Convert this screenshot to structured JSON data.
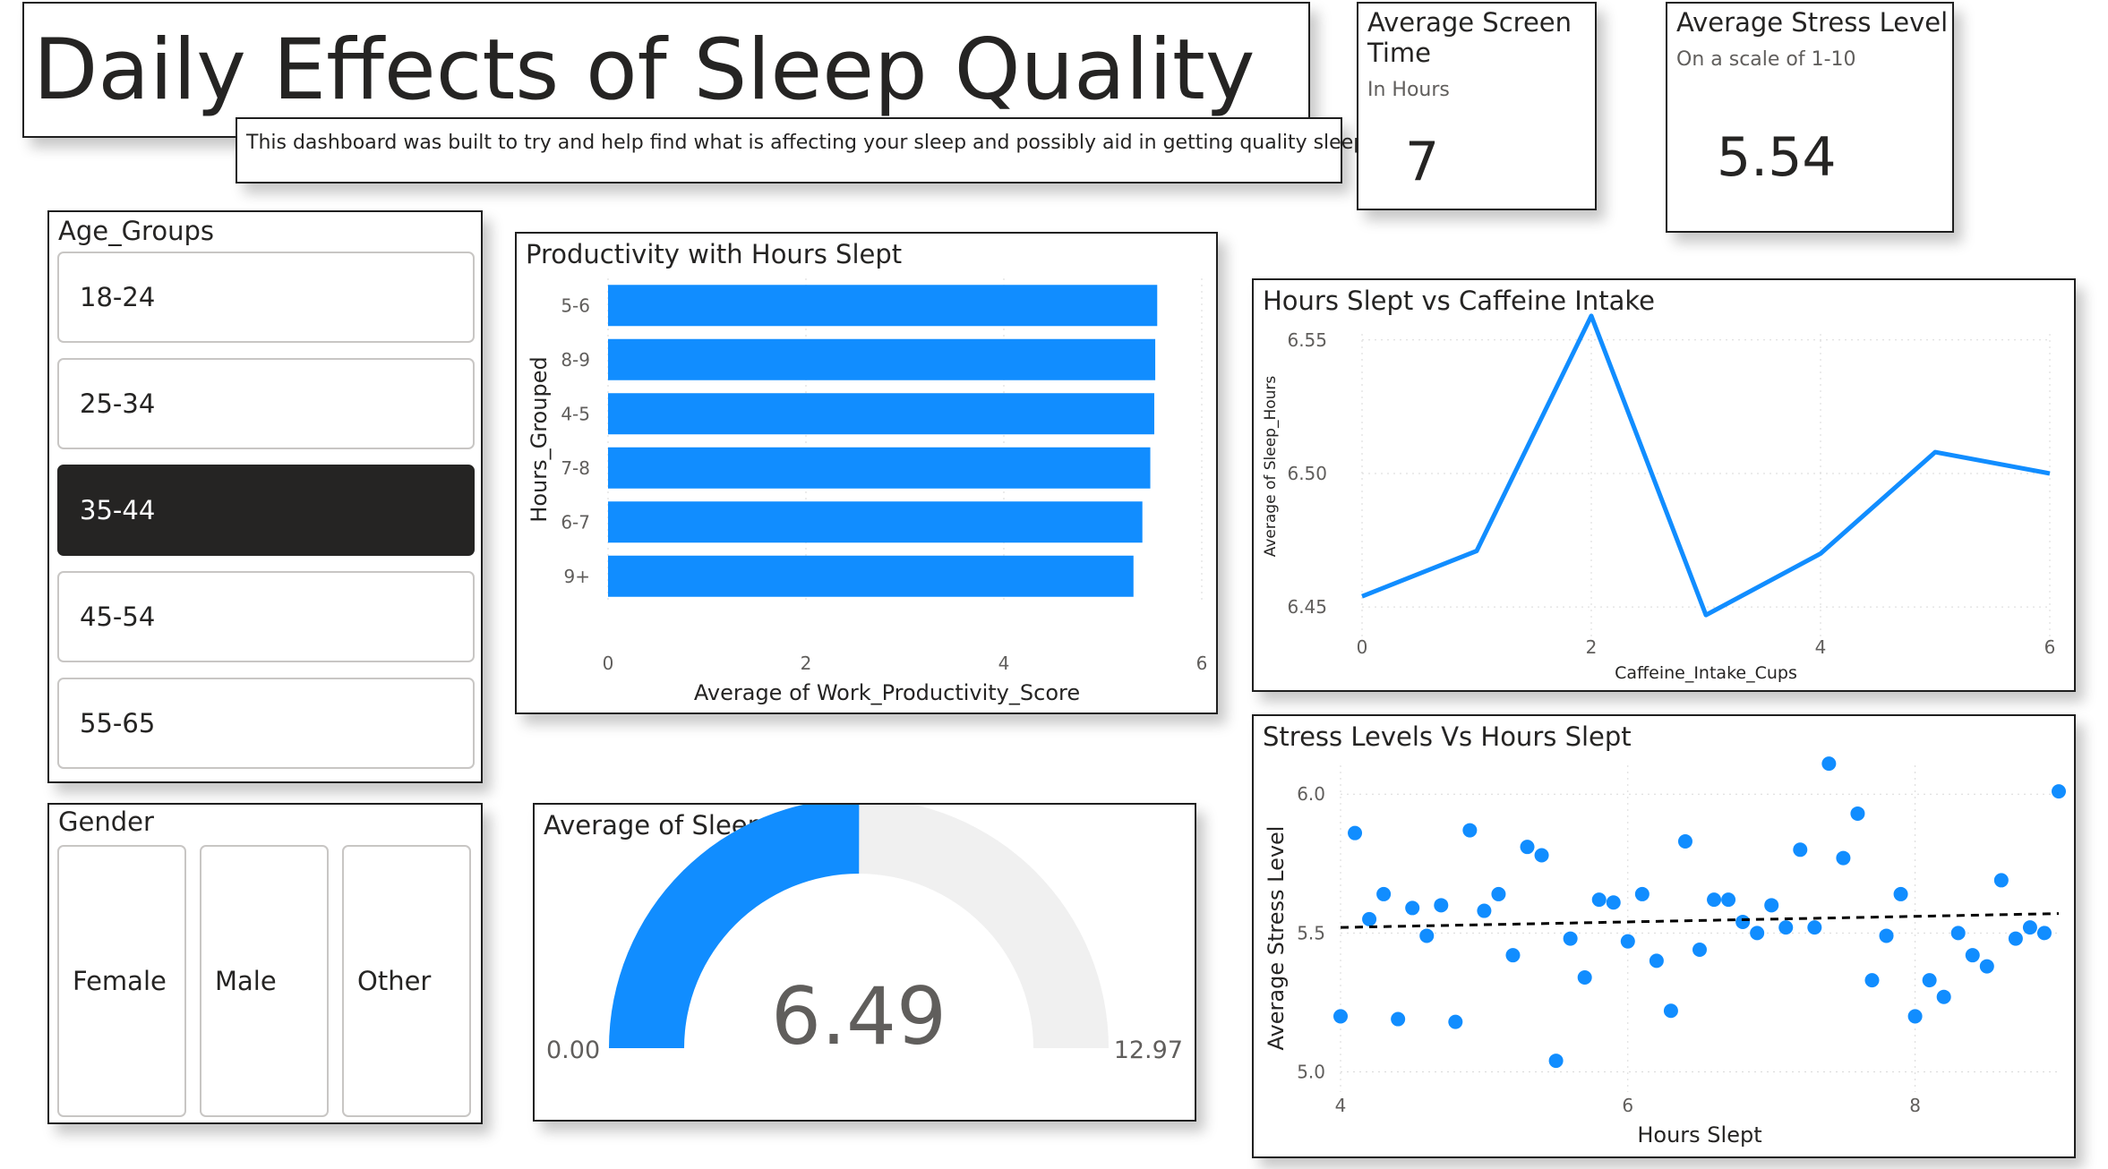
{
  "header": {
    "title": "Daily Effects of Sleep Quality",
    "subtitle": "This dashboard was built to try and help find what is affecting your sleep and possibly aid in getting quality sleep"
  },
  "kpi_screen": {
    "title_line1": "Average Screen",
    "title_line2": "Time",
    "subtitle": "In Hours",
    "value": "7"
  },
  "kpi_stress": {
    "title": "Average Stress Level",
    "subtitle": "On a scale of 1-10",
    "value": "5.54"
  },
  "age_slicer": {
    "title": "Age_Groups",
    "items": [
      {
        "label": "18-24",
        "selected": false
      },
      {
        "label": "25-34",
        "selected": false
      },
      {
        "label": "35-44",
        "selected": true
      },
      {
        "label": "45-54",
        "selected": false
      },
      {
        "label": "55-65",
        "selected": false
      }
    ]
  },
  "gender_slicer": {
    "title": "Gender",
    "items": [
      "Female",
      "Male",
      "Other"
    ]
  },
  "colors": {
    "accent": "#118dff",
    "selected": "#252423",
    "gauge_track": "#f0f0f0",
    "trend": "#000000"
  },
  "chart_data": [
    {
      "id": "productivity",
      "type": "bar",
      "orientation": "horizontal",
      "title": "Productivity with Hours Slept",
      "xlabel": "Average of Work_Productivity_Score",
      "ylabel": "Hours_Grouped",
      "categories": [
        "5-6",
        "8-9",
        "4-5",
        "7-8",
        "6-7",
        "9+"
      ],
      "values": [
        5.55,
        5.53,
        5.52,
        5.48,
        5.4,
        5.31
      ],
      "xlim": [
        0,
        6
      ],
      "xticks": [
        0,
        2,
        4,
        6
      ],
      "grid": true
    },
    {
      "id": "caffeine",
      "type": "line",
      "title": "Hours Slept vs Caffeine Intake",
      "xlabel": "Caffeine_Intake_Cups",
      "ylabel": "Average of Sleep_Hours",
      "x": [
        0,
        1,
        2,
        3,
        4,
        5,
        6
      ],
      "y": [
        6.454,
        6.471,
        6.559,
        6.447,
        6.47,
        6.508,
        6.5
      ],
      "xlim": [
        0,
        6
      ],
      "ylim": [
        6.44,
        6.565
      ],
      "xticks": [
        0,
        2,
        4,
        6
      ],
      "yticks": [
        6.45,
        6.5,
        6.55
      ],
      "ytick_labels": [
        "6.45",
        "6.50",
        "6.55"
      ],
      "grid": true
    },
    {
      "id": "gauge",
      "type": "gauge",
      "title": "Average of Sleep_Hours",
      "value": 6.49,
      "value_label": "6.49",
      "min": 0,
      "min_label": "0.00",
      "max": 12.97,
      "max_label": "12.97"
    },
    {
      "id": "stress",
      "type": "scatter",
      "title": "Stress Levels Vs Hours Slept",
      "xlabel": "Hours Slept",
      "ylabel": "Average Stress Level",
      "xlim": [
        4,
        9
      ],
      "ylim": [
        4.95,
        6.12
      ],
      "xticks": [
        4,
        6,
        8
      ],
      "yticks": [
        5.0,
        5.5,
        6.0
      ],
      "ytick_labels": [
        "5.0",
        "5.5",
        "6.0"
      ],
      "trendline": {
        "x": [
          4,
          9
        ],
        "y": [
          5.52,
          5.57
        ]
      },
      "points": [
        [
          4.0,
          5.2
        ],
        [
          4.1,
          5.86
        ],
        [
          4.2,
          5.55
        ],
        [
          4.3,
          5.64
        ],
        [
          4.4,
          5.19
        ],
        [
          4.5,
          5.59
        ],
        [
          4.6,
          5.49
        ],
        [
          4.7,
          5.6
        ],
        [
          4.8,
          5.18
        ],
        [
          4.9,
          5.87
        ],
        [
          5.0,
          5.58
        ],
        [
          5.1,
          5.64
        ],
        [
          5.2,
          5.42
        ],
        [
          5.3,
          5.81
        ],
        [
          5.4,
          5.78
        ],
        [
          5.5,
          5.04
        ],
        [
          5.6,
          5.48
        ],
        [
          5.7,
          5.34
        ],
        [
          5.8,
          5.62
        ],
        [
          5.9,
          5.61
        ],
        [
          6.0,
          5.47
        ],
        [
          6.1,
          5.64
        ],
        [
          6.2,
          5.4
        ],
        [
          6.3,
          5.22
        ],
        [
          6.4,
          5.83
        ],
        [
          6.5,
          5.44
        ],
        [
          6.6,
          5.62
        ],
        [
          6.7,
          5.62
        ],
        [
          6.8,
          5.54
        ],
        [
          6.9,
          5.5
        ],
        [
          7.0,
          5.6
        ],
        [
          7.1,
          5.52
        ],
        [
          7.2,
          5.8
        ],
        [
          7.3,
          5.52
        ],
        [
          7.4,
          6.11
        ],
        [
          7.5,
          5.77
        ],
        [
          7.6,
          5.93
        ],
        [
          7.7,
          5.33
        ],
        [
          7.8,
          5.49
        ],
        [
          7.9,
          5.64
        ],
        [
          8.0,
          5.2
        ],
        [
          8.1,
          5.33
        ],
        [
          8.2,
          5.27
        ],
        [
          8.3,
          5.5
        ],
        [
          8.4,
          5.42
        ],
        [
          8.5,
          5.38
        ],
        [
          8.6,
          5.69
        ],
        [
          8.7,
          5.48
        ],
        [
          8.8,
          5.52
        ],
        [
          8.9,
          5.5
        ],
        [
          9.0,
          6.01
        ]
      ]
    }
  ]
}
